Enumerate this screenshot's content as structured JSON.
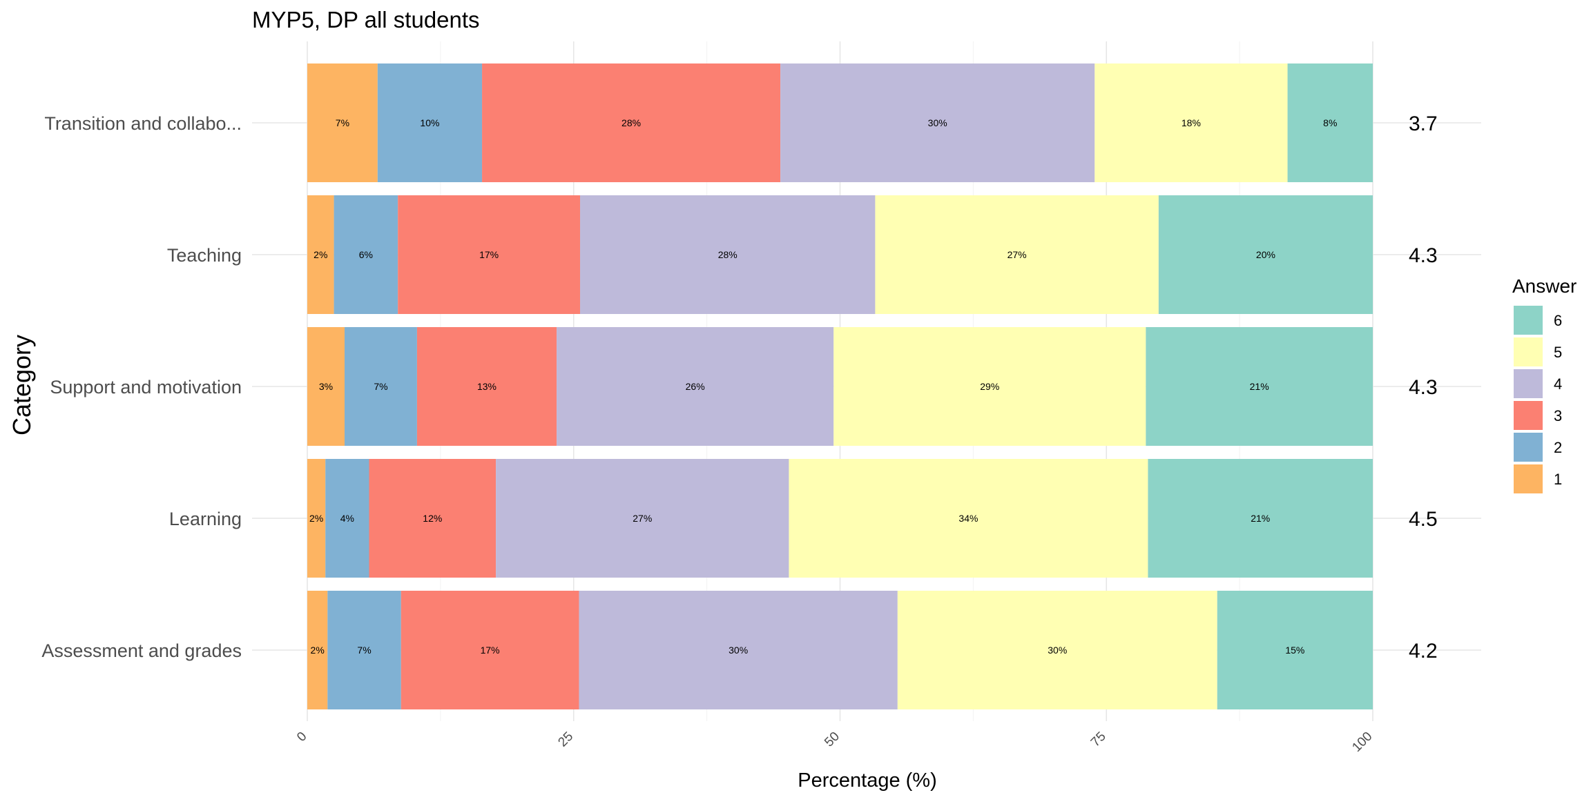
{
  "chart_data": {
    "type": "bar",
    "orientation": "horizontal",
    "stacked": true,
    "title": "MYP5, DP all students",
    "xlabel": "Percentage (%)",
    "ylabel": "Category",
    "xlim": [
      0,
      100
    ],
    "x_ticks": [
      "0",
      "25",
      "50",
      "75",
      "100"
    ],
    "grid": true,
    "legend_title": "Answer",
    "legend_position": "right",
    "categories": [
      "Transition and collabo...",
      "Teaching",
      "Support and motivation",
      "Learning",
      "Assessment and grades"
    ],
    "series": [
      {
        "name": "1",
        "color": "#FDB462",
        "values": [
          6.6,
          2.5,
          3.5,
          1.7,
          1.9
        ],
        "labels": [
          "7%",
          "2%",
          "3%",
          "2%",
          "2%"
        ]
      },
      {
        "name": "2",
        "color": "#80B1D3",
        "values": [
          9.8,
          6.0,
          6.8,
          4.1,
          6.9
        ],
        "labels": [
          "10%",
          "6%",
          "7%",
          "4%",
          "7%"
        ]
      },
      {
        "name": "3",
        "color": "#FB8072",
        "values": [
          28.0,
          17.1,
          13.1,
          11.9,
          16.7
        ],
        "labels": [
          "28%",
          "17%",
          "13%",
          "12%",
          "17%"
        ]
      },
      {
        "name": "4",
        "color": "#BEBADA",
        "values": [
          29.5,
          27.7,
          26.0,
          27.5,
          29.9
        ],
        "labels": [
          "30%",
          "28%",
          "26%",
          "27%",
          "30%"
        ]
      },
      {
        "name": "5",
        "color": "#FFFFB3",
        "values": [
          18.1,
          26.6,
          29.3,
          33.7,
          30.0
        ],
        "labels": [
          "18%",
          "27%",
          "29%",
          "34%",
          "30%"
        ]
      },
      {
        "name": "6",
        "color": "#8DD3C7",
        "values": [
          8.0,
          20.1,
          21.3,
          21.1,
          14.6
        ],
        "labels": [
          "8%",
          "20%",
          "21%",
          "21%",
          "15%"
        ]
      }
    ],
    "legend_order": [
      "6",
      "5",
      "4",
      "3",
      "2",
      "1"
    ],
    "mean_labels": [
      "3.7",
      "4.3",
      "4.3",
      "4.5",
      "4.2"
    ]
  }
}
